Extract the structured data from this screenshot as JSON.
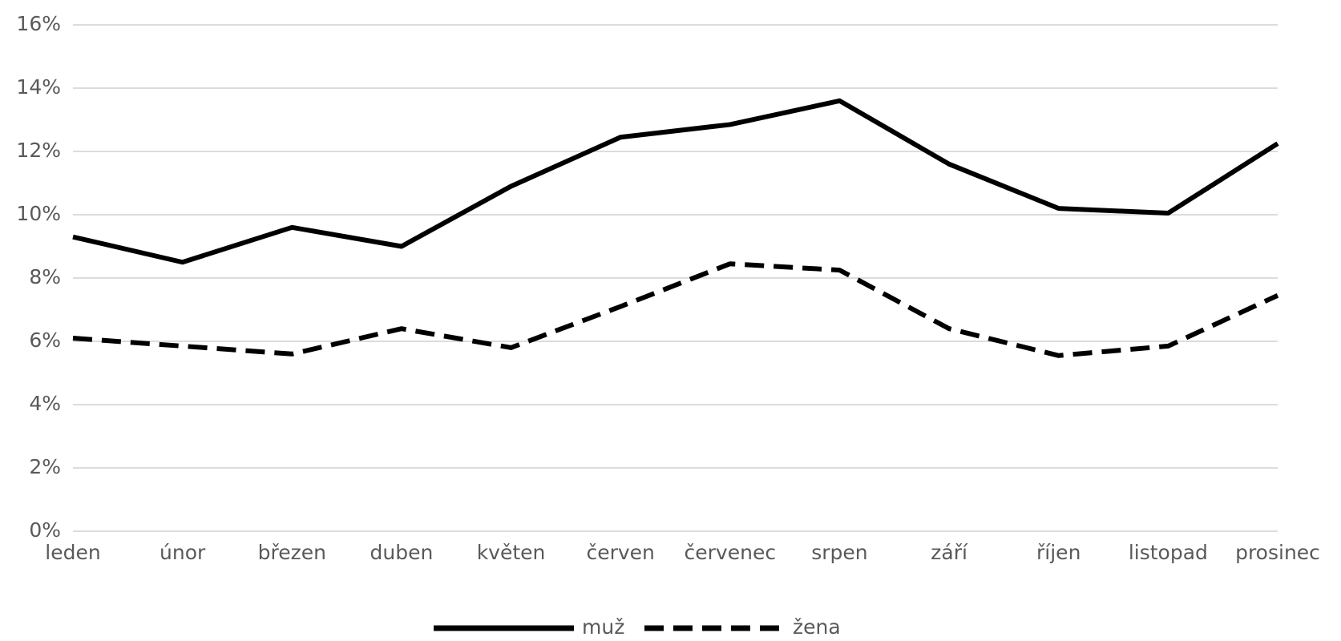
{
  "chart_data": {
    "type": "line",
    "categories": [
      "leden",
      "únor",
      "březen",
      "duben",
      "květen",
      "červen",
      "červenec",
      "srpen",
      "září",
      "říjen",
      "listopad",
      "prosinec"
    ],
    "series": [
      {
        "name": "muž",
        "color": "#000000",
        "dash": false,
        "values": [
          9.3,
          8.5,
          9.6,
          9.0,
          10.9,
          12.45,
          12.85,
          13.6,
          11.6,
          10.2,
          10.05,
          12.25
        ]
      },
      {
        "name": "žena",
        "color": "#000000",
        "dash": true,
        "values": [
          6.1,
          5.85,
          5.6,
          6.4,
          5.8,
          7.1,
          8.45,
          8.25,
          6.4,
          5.55,
          5.85,
          7.45
        ]
      }
    ],
    "ylim": [
      0,
      16
    ],
    "yticks": [
      {
        "value": 0,
        "label": "0%"
      },
      {
        "value": 2,
        "label": "2%"
      },
      {
        "value": 4,
        "label": "4%"
      },
      {
        "value": 6,
        "label": "6%"
      },
      {
        "value": 8,
        "label": "8%"
      },
      {
        "value": 10,
        "label": "10%"
      },
      {
        "value": 12,
        "label": "12%"
      },
      {
        "value": 14,
        "label": "14%"
      },
      {
        "value": 16,
        "label": "16%"
      }
    ],
    "grid": true,
    "legend": "bottom"
  }
}
